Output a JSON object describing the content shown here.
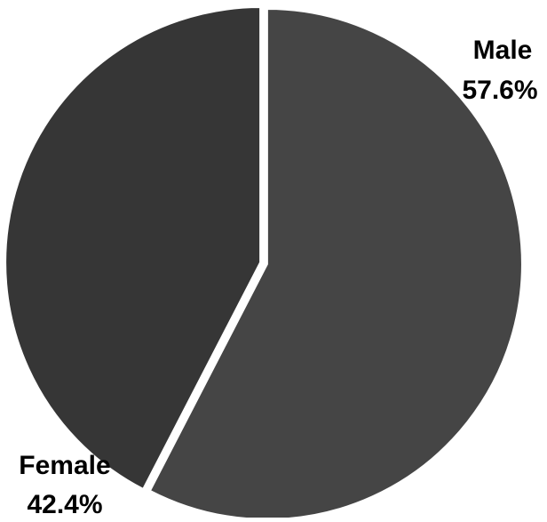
{
  "chart_data": {
    "type": "pie",
    "slices": [
      {
        "label": "Male",
        "percent_label": "57.6%",
        "value": 57.6,
        "color": "#454545"
      },
      {
        "label": "Female",
        "percent_label": "42.4%",
        "value": 42.4,
        "color": "#363636"
      }
    ],
    "start_angle": "12 o'clock",
    "direction": "clockwise",
    "slice_separator_color": "#ffffff",
    "legend": "none"
  }
}
